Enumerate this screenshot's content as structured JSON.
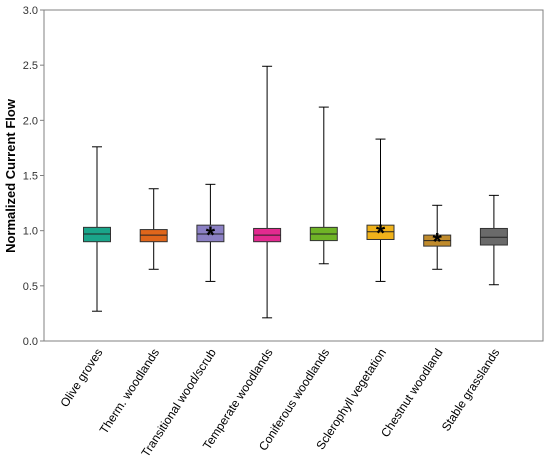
{
  "chart_data": {
    "type": "box",
    "title": "",
    "xlabel": "",
    "ylabel": "Normalized Current Flow",
    "ylim": [
      0.0,
      3.0
    ],
    "yticks": [
      "0.0",
      "0.5",
      "1.0",
      "1.5",
      "2.0",
      "2.5",
      "3.0"
    ],
    "grid": false,
    "legend": "none",
    "categories": [
      "Olive groves",
      "Therm. woodlands",
      "Transitional wood/scrub",
      "Temperate woodlands",
      "Coniferous woodlands",
      "Sclerophyll vegetation",
      "Chestnut woodland",
      "Stable grasslands"
    ],
    "boxes": [
      {
        "category": "Olive groves",
        "whisker_low": 0.27,
        "q1": 0.9,
        "median": 0.97,
        "q3": 1.03,
        "whisker_high": 1.76,
        "star": false,
        "color": "#1aa58a"
      },
      {
        "category": "Therm. woodlands",
        "whisker_low": 0.65,
        "q1": 0.9,
        "median": 0.96,
        "q3": 1.01,
        "whisker_high": 1.38,
        "star": false,
        "color": "#e0661b"
      },
      {
        "category": "Transitional wood/scrub",
        "whisker_low": 0.54,
        "q1": 0.9,
        "median": 0.97,
        "q3": 1.05,
        "whisker_high": 1.42,
        "star": true,
        "color": "#8b80c4"
      },
      {
        "category": "Temperate woodlands",
        "whisker_low": 0.21,
        "q1": 0.9,
        "median": 0.96,
        "q3": 1.02,
        "whisker_high": 2.49,
        "star": false,
        "color": "#e22a8f"
      },
      {
        "category": "Coniferous woodlands",
        "whisker_low": 0.7,
        "q1": 0.91,
        "median": 0.97,
        "q3": 1.03,
        "whisker_high": 2.12,
        "star": false,
        "color": "#6fb426"
      },
      {
        "category": "Sclerophyll vegetation",
        "whisker_low": 0.54,
        "q1": 0.92,
        "median": 0.99,
        "q3": 1.05,
        "whisker_high": 1.83,
        "star": true,
        "color": "#f0b21a"
      },
      {
        "category": "Chestnut woodland",
        "whisker_low": 0.65,
        "q1": 0.86,
        "median": 0.91,
        "q3": 0.96,
        "whisker_high": 1.23,
        "star": true,
        "color": "#c08b2c"
      },
      {
        "category": "Stable grasslands",
        "whisker_low": 0.51,
        "q1": 0.87,
        "median": 0.94,
        "q3": 1.02,
        "whisker_high": 1.32,
        "star": false,
        "color": "#6a6a6a"
      }
    ]
  }
}
